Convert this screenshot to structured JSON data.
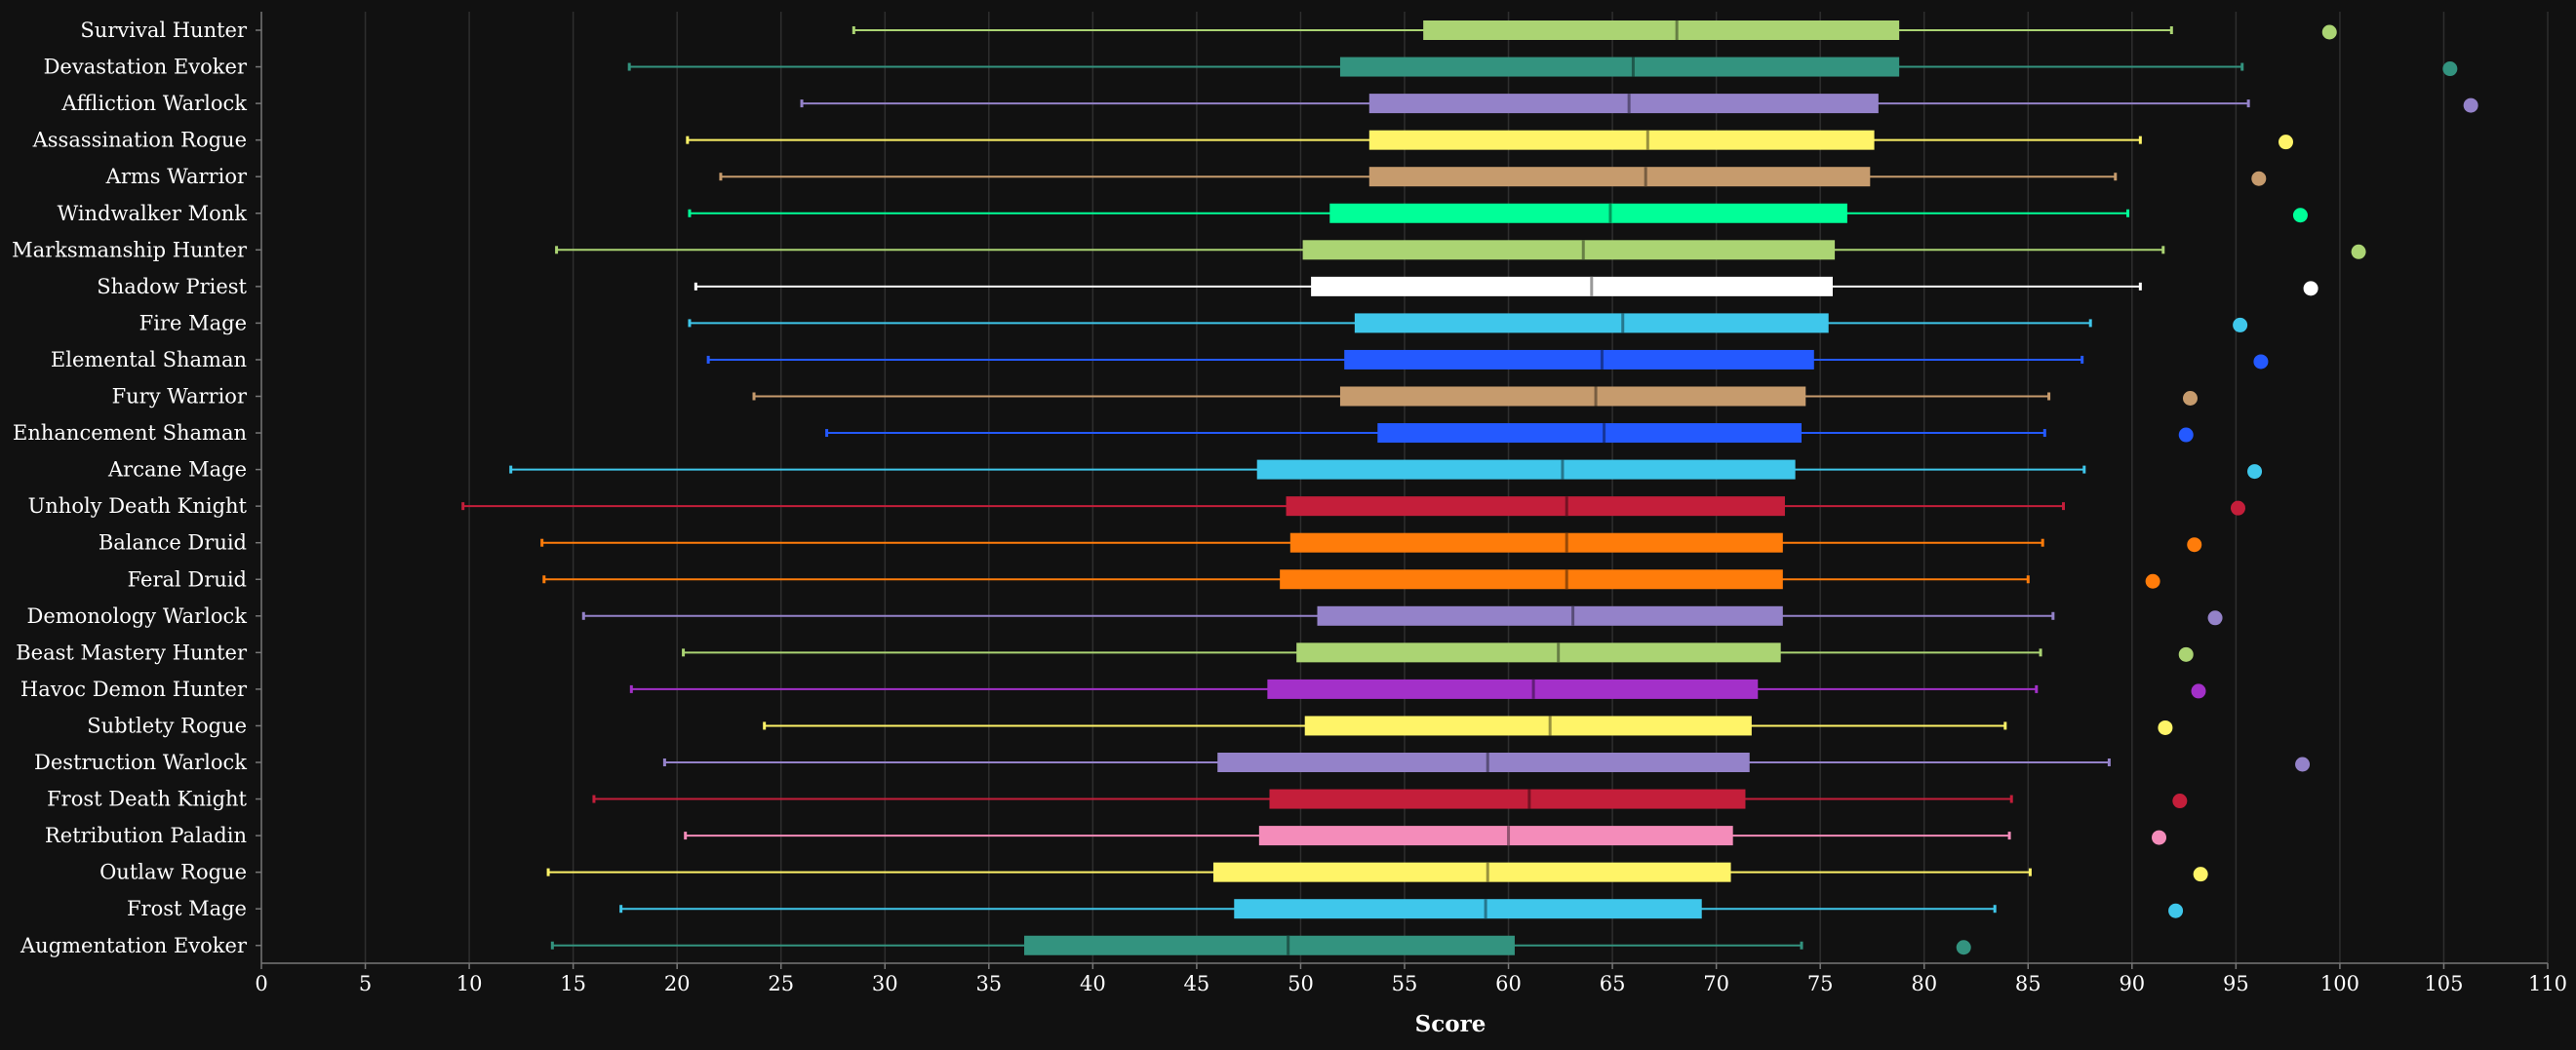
{
  "chart_data": {
    "type": "box",
    "title": "",
    "xlabel": "Score",
    "ylabel": "",
    "xlim": [
      0,
      110
    ],
    "xticks": [
      0,
      5,
      10,
      15,
      20,
      25,
      30,
      35,
      40,
      45,
      50,
      55,
      60,
      65,
      70,
      75,
      80,
      85,
      90,
      95,
      100,
      105,
      110
    ],
    "grid": "vertical",
    "background": "#111111",
    "rows": [
      {
        "name": "Survival Hunter",
        "color": "#abd473",
        "min": 28.5,
        "q1": 55.9,
        "median": 68.1,
        "q3": 78.8,
        "max": 91.9,
        "top": 99.5
      },
      {
        "name": "Devastation Evoker",
        "color": "#33937f",
        "min": 17.7,
        "q1": 51.9,
        "median": 66.0,
        "q3": 78.8,
        "max": 95.3,
        "top": 105.3
      },
      {
        "name": "Affliction Warlock",
        "color": "#9482c9",
        "min": 26.0,
        "q1": 53.3,
        "median": 65.8,
        "q3": 77.8,
        "max": 95.6,
        "top": 106.3
      },
      {
        "name": "Assassination Rogue",
        "color": "#fff468",
        "min": 20.5,
        "q1": 53.3,
        "median": 66.7,
        "q3": 77.6,
        "max": 90.4,
        "top": 97.4
      },
      {
        "name": "Arms Warrior",
        "color": "#c69b6d",
        "min": 22.1,
        "q1": 53.3,
        "median": 66.6,
        "q3": 77.4,
        "max": 89.2,
        "top": 96.1
      },
      {
        "name": "Windwalker Monk",
        "color": "#00ff98",
        "min": 20.6,
        "q1": 51.4,
        "median": 64.9,
        "q3": 76.3,
        "max": 89.8,
        "top": 98.1
      },
      {
        "name": "Marksmanship Hunter",
        "color": "#abd473",
        "min": 14.2,
        "q1": 50.1,
        "median": 63.6,
        "q3": 75.7,
        "max": 91.5,
        "top": 100.9
      },
      {
        "name": "Shadow Priest",
        "color": "#ffffff",
        "min": 20.9,
        "q1": 50.5,
        "median": 64.0,
        "q3": 75.6,
        "max": 90.4,
        "top": 98.6
      },
      {
        "name": "Fire Mage",
        "color": "#3fc7eb",
        "min": 20.6,
        "q1": 52.6,
        "median": 65.5,
        "q3": 75.4,
        "max": 88.0,
        "top": 95.2
      },
      {
        "name": "Elemental Shaman",
        "color": "#2459ff",
        "min": 21.5,
        "q1": 52.1,
        "median": 64.5,
        "q3": 74.7,
        "max": 87.6,
        "top": 96.2
      },
      {
        "name": "Fury Warrior",
        "color": "#c69b6d",
        "min": 23.7,
        "q1": 51.9,
        "median": 64.2,
        "q3": 74.3,
        "max": 86.0,
        "top": 92.8
      },
      {
        "name": "Enhancement Shaman",
        "color": "#2459ff",
        "min": 27.2,
        "q1": 53.7,
        "median": 64.6,
        "q3": 74.1,
        "max": 85.8,
        "top": 92.6
      },
      {
        "name": "Arcane Mage",
        "color": "#3fc7eb",
        "min": 12.0,
        "q1": 47.9,
        "median": 62.6,
        "q3": 73.8,
        "max": 87.7,
        "top": 95.9
      },
      {
        "name": "Unholy Death Knight",
        "color": "#c41e3a",
        "min": 9.7,
        "q1": 49.3,
        "median": 62.8,
        "q3": 73.3,
        "max": 86.7,
        "top": 95.1
      },
      {
        "name": "Balance Druid",
        "color": "#ff7c0a",
        "min": 13.5,
        "q1": 49.5,
        "median": 62.8,
        "q3": 73.2,
        "max": 85.7,
        "top": 93.0
      },
      {
        "name": "Feral Druid",
        "color": "#ff7c0a",
        "min": 13.6,
        "q1": 49.0,
        "median": 62.8,
        "q3": 73.2,
        "max": 85.0,
        "top": 91.0
      },
      {
        "name": "Demonology Warlock",
        "color": "#9482c9",
        "min": 15.5,
        "q1": 50.8,
        "median": 63.1,
        "q3": 73.2,
        "max": 86.2,
        "top": 94.0
      },
      {
        "name": "Beast Mastery Hunter",
        "color": "#abd473",
        "min": 20.3,
        "q1": 49.8,
        "median": 62.4,
        "q3": 73.1,
        "max": 85.6,
        "top": 92.6
      },
      {
        "name": "Havoc Demon Hunter",
        "color": "#a330c9",
        "min": 17.8,
        "q1": 48.4,
        "median": 61.2,
        "q3": 72.0,
        "max": 85.4,
        "top": 93.2
      },
      {
        "name": "Subtlety Rogue",
        "color": "#fff468",
        "min": 24.2,
        "q1": 50.2,
        "median": 62.0,
        "q3": 71.7,
        "max": 83.9,
        "top": 91.6
      },
      {
        "name": "Destruction Warlock",
        "color": "#9482c9",
        "min": 19.4,
        "q1": 46.0,
        "median": 59.0,
        "q3": 71.6,
        "max": 88.9,
        "top": 98.2
      },
      {
        "name": "Frost Death Knight",
        "color": "#c41e3a",
        "min": 16.0,
        "q1": 48.5,
        "median": 61.0,
        "q3": 71.4,
        "max": 84.2,
        "top": 92.3
      },
      {
        "name": "Retribution Paladin",
        "color": "#f48cba",
        "min": 20.4,
        "q1": 48.0,
        "median": 60.0,
        "q3": 70.8,
        "max": 84.1,
        "top": 91.3
      },
      {
        "name": "Outlaw Rogue",
        "color": "#fff468",
        "min": 13.8,
        "q1": 45.8,
        "median": 59.0,
        "q3": 70.7,
        "max": 85.1,
        "top": 93.3
      },
      {
        "name": "Frost Mage",
        "color": "#3fc7eb",
        "min": 17.3,
        "q1": 46.8,
        "median": 58.9,
        "q3": 69.3,
        "max": 83.4,
        "top": 92.1
      },
      {
        "name": "Augmentation Evoker",
        "color": "#33937f",
        "min": 14.0,
        "q1": 36.7,
        "median": 49.4,
        "q3": 60.3,
        "max": 74.1,
        "top": 81.9
      }
    ]
  }
}
